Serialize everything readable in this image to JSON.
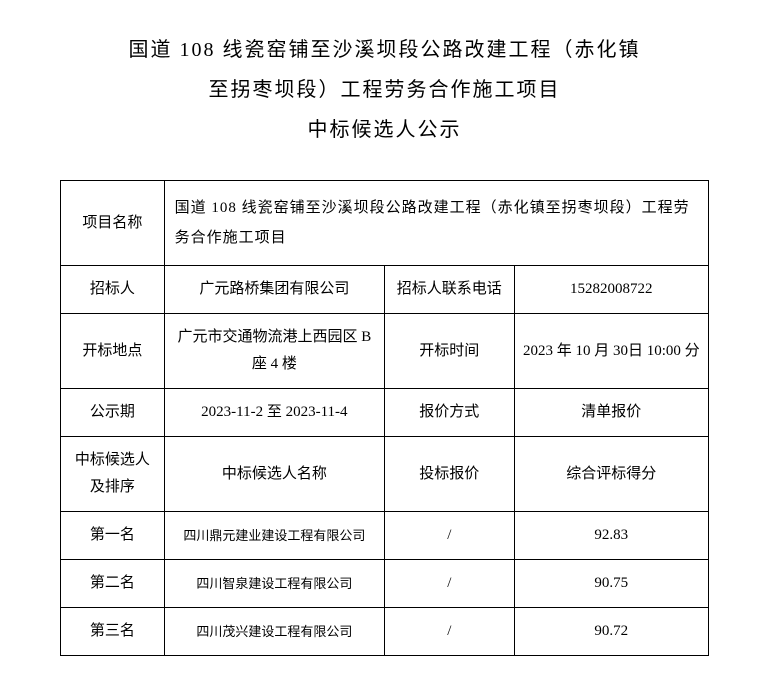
{
  "title": {
    "line1": "国道 108 线瓷窑铺至沙溪坝段公路改建工程（赤化镇",
    "line2": "至拐枣坝段）工程劳务合作施工项目",
    "line3": "中标候选人公示"
  },
  "table": {
    "project_name_label": "项目名称",
    "project_name_value": "国道 108 线瓷窑铺至沙溪坝段公路改建工程（赤化镇至拐枣坝段）工程劳务合作施工项目",
    "tenderer_label": "招标人",
    "tenderer_value": "广元路桥集团有限公司",
    "tenderer_phone_label": "招标人联系电话",
    "tenderer_phone_value": "15282008722",
    "bid_location_label": "开标地点",
    "bid_location_value": "广元市交通物流港上西园区 B座 4 楼",
    "bid_time_label": "开标时间",
    "bid_time_value": "2023 年 10 月 30日 10:00 分",
    "public_period_label": "公示期",
    "public_period_value": "2023-11-2 至 2023-11-4",
    "quote_method_label": "报价方式",
    "quote_method_value": "清单报价",
    "candidate_rank_label": "中标候选人及排序",
    "candidate_name_header": "中标候选人名称",
    "bid_price_header": "投标报价",
    "score_header": "综合评标得分",
    "rows": [
      {
        "rank": "第一名",
        "name": "四川鼎元建业建设工程有限公司",
        "price": "/",
        "score": "92.83"
      },
      {
        "rank": "第二名",
        "name": "四川智泉建设工程有限公司",
        "price": "/",
        "score": "90.75"
      },
      {
        "rank": "第三名",
        "name": "四川茂兴建设工程有限公司",
        "price": "/",
        "score": "90.72"
      }
    ]
  }
}
